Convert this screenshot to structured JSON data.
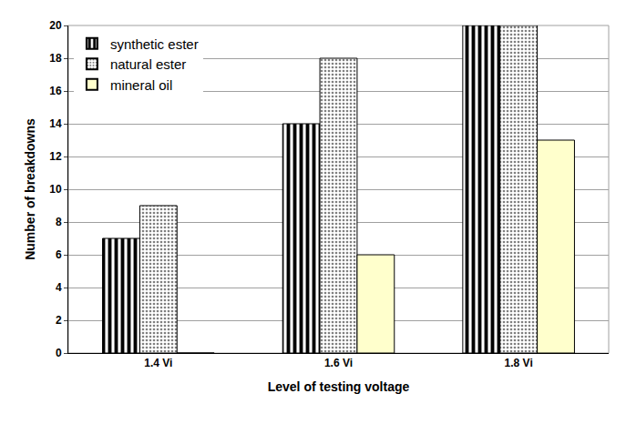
{
  "chart_data": {
    "type": "bar",
    "x_label": "Level of testing voltage",
    "y_label": "Number of breakdowns",
    "categories": [
      "1.4 Vi",
      "1.6 Vi",
      "1.8 Vi"
    ],
    "series": [
      {
        "name": "synthetic ester",
        "color": "#000000",
        "marker": "vertical_stripes",
        "values": [
          7,
          14,
          20
        ]
      },
      {
        "name": "natural ester",
        "color": "#808080",
        "marker": "dots",
        "values": [
          9,
          18,
          20
        ]
      },
      {
        "name": "mineral oil",
        "color": "#ffffcc",
        "marker": "solid",
        "values": [
          0,
          6,
          13
        ]
      }
    ],
    "ylim": [
      0,
      20
    ],
    "yticks": [
      0,
      2,
      4,
      6,
      8,
      10,
      12,
      14,
      16,
      18,
      20
    ],
    "grid": true,
    "legend": "upper left"
  }
}
